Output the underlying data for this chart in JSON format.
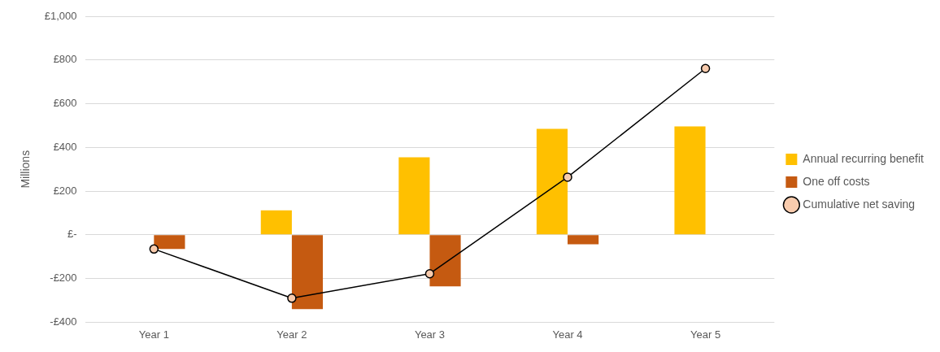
{
  "chart_data": {
    "type": "bar",
    "ylabel": "Millions",
    "categories": [
      "Year 1",
      "Year 2",
      "Year 3",
      "Year 4",
      "Year 5"
    ],
    "series": [
      {
        "name": "Annual recurring benefit",
        "color": "#ffc000",
        "values": [
          0,
          112,
          355,
          485,
          496
        ]
      },
      {
        "name": "One off costs",
        "color": "#c55a11",
        "values": [
          -65,
          -340,
          -236,
          -43,
          0
        ]
      },
      {
        "name": "Cumulative net saving",
        "type": "line",
        "color": "#000000",
        "values": [
          -65,
          -290,
          -178,
          264,
          761
        ]
      }
    ],
    "ylim": [
      -400,
      1000
    ],
    "yticks": [
      {
        "value": -400,
        "label": "-£400"
      },
      {
        "value": -200,
        "label": "-£200"
      },
      {
        "value": 0,
        "label": "£-"
      },
      {
        "value": 200,
        "label": "£200"
      },
      {
        "value": 400,
        "label": "£400"
      },
      {
        "value": 600,
        "label": "£600"
      },
      {
        "value": 800,
        "label": "£800"
      },
      {
        "value": 1000,
        "label": "£1,000"
      }
    ],
    "grid": "y",
    "legend": "right",
    "marker": "circle",
    "line_style": "solid"
  }
}
